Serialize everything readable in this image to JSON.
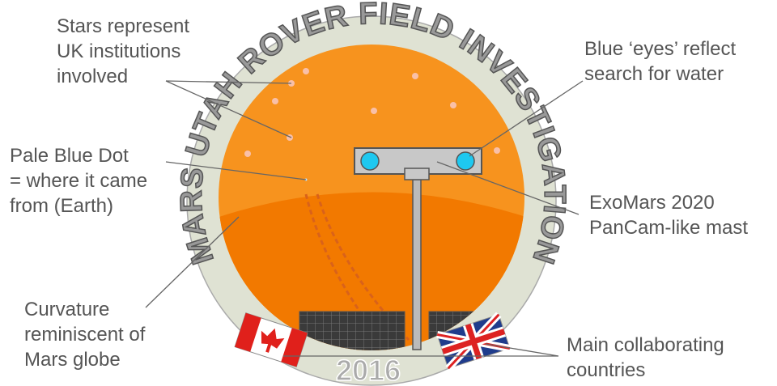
{
  "patch": {
    "title": "MARS UTAH ROVER FIELD INVESTIGATION",
    "year": "2016"
  },
  "annotations": [
    {
      "lines": [
        "Stars represent",
        "UK institutions",
        "involved"
      ]
    },
    {
      "lines": [
        "Pale Blue Dot",
        "= where it came",
        "from (Earth)"
      ]
    },
    {
      "lines": [
        "Curvature",
        "reminiscent of",
        "Mars globe"
      ]
    },
    {
      "lines": [
        "Blue ‘eyes’ reflect",
        "search for water"
      ]
    },
    {
      "lines": [
        "ExoMars 2020",
        "PanCam-like mast"
      ]
    },
    {
      "lines": [
        "Main collaborating",
        "countries"
      ]
    }
  ]
}
